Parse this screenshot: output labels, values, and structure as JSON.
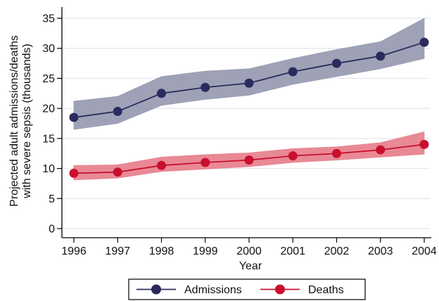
{
  "chart_data": {
    "type": "line",
    "title": "",
    "xlabel": "Year",
    "ylabel_lines": [
      "Projected adult admissions/deaths",
      "with severe sepsis (thousands)"
    ],
    "x": [
      1996,
      1997,
      1998,
      1999,
      2000,
      2001,
      2002,
      2003,
      2004
    ],
    "xticks": [
      "1996",
      "1997",
      "1998",
      "1999",
      "2000",
      "2001",
      "2002",
      "2003",
      "2004"
    ],
    "yticks": [
      "0",
      "5",
      "10",
      "15",
      "20",
      "25",
      "30",
      "35"
    ],
    "xlim": [
      1996,
      2004
    ],
    "ylim": [
      0,
      35
    ],
    "grid": "horizontal",
    "legend_position": "bottom",
    "series": [
      {
        "name": "Admissions",
        "color": "#2b2b5e",
        "band_color": "#9a9db2",
        "values": [
          18.5,
          19.5,
          22.5,
          23.5,
          24.2,
          26.1,
          27.5,
          28.7,
          31.0
        ],
        "lower": [
          16.5,
          17.5,
          20.5,
          21.5,
          22.2,
          24.0,
          25.3,
          26.6,
          28.3
        ],
        "upper": [
          21.2,
          22.0,
          25.3,
          26.2,
          26.6,
          28.3,
          29.8,
          31.1,
          35.0
        ]
      },
      {
        "name": "Deaths",
        "color": "#c8102e",
        "band_color": "#e8838f",
        "values": [
          9.2,
          9.4,
          10.5,
          11.0,
          11.4,
          12.1,
          12.5,
          13.1,
          14.0
        ],
        "lower": [
          8.1,
          8.4,
          9.5,
          9.9,
          10.3,
          11.0,
          11.4,
          11.9,
          12.4
        ],
        "upper": [
          10.5,
          10.6,
          11.9,
          12.3,
          12.6,
          13.3,
          13.6,
          14.3,
          16.1
        ]
      }
    ]
  }
}
